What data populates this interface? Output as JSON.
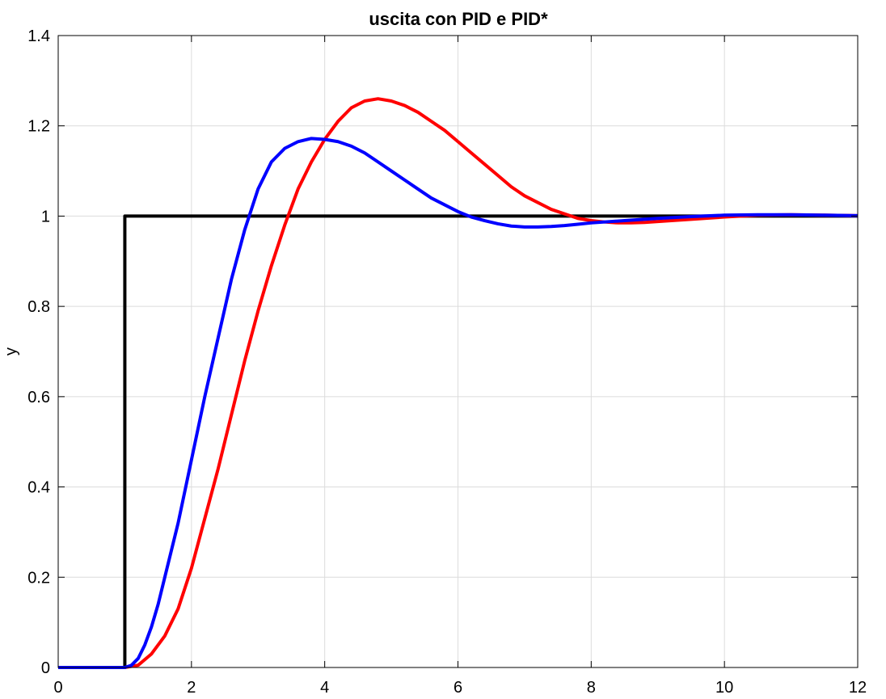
{
  "chart_data": {
    "type": "line",
    "title": "uscita con PID e PID*",
    "xlabel": "",
    "ylabel": "y",
    "xlim": [
      0,
      12
    ],
    "ylim": [
      0,
      1.4
    ],
    "xticks": [
      0,
      2,
      4,
      6,
      8,
      10,
      12
    ],
    "yticks": [
      0,
      0.2,
      0.4,
      0.6,
      0.8,
      1,
      1.2,
      1.4
    ],
    "xtick_labels": [
      "0",
      "2",
      "4",
      "6",
      "8",
      "10",
      "12"
    ],
    "ytick_labels": [
      "0",
      "0.2",
      "0.4",
      "0.6",
      "0.8",
      "1",
      "1.2",
      "1.4"
    ],
    "grid": true,
    "series": [
      {
        "color": "#000000",
        "x": [
          0,
          1,
          1,
          12
        ],
        "y": [
          0,
          0,
          1,
          1
        ]
      },
      {
        "color": "#ff0000",
        "x": [
          0,
          1.0,
          1.2,
          1.4,
          1.6,
          1.8,
          2.0,
          2.2,
          2.4,
          2.6,
          2.8,
          3.0,
          3.2,
          3.4,
          3.6,
          3.8,
          4.0,
          4.2,
          4.4,
          4.6,
          4.8,
          5.0,
          5.2,
          5.4,
          5.6,
          5.8,
          6.0,
          6.2,
          6.4,
          6.6,
          6.8,
          7.0,
          7.2,
          7.4,
          7.6,
          7.8,
          8.0,
          8.2,
          8.4,
          8.6,
          8.8,
          9.0,
          9.5,
          10.0,
          10.5,
          11.0,
          11.5,
          12.0
        ],
        "y": [
          0,
          0,
          0.005,
          0.03,
          0.07,
          0.13,
          0.22,
          0.33,
          0.44,
          0.56,
          0.68,
          0.79,
          0.89,
          0.98,
          1.06,
          1.12,
          1.17,
          1.21,
          1.24,
          1.255,
          1.26,
          1.255,
          1.245,
          1.23,
          1.21,
          1.19,
          1.165,
          1.14,
          1.115,
          1.09,
          1.065,
          1.045,
          1.03,
          1.015,
          1.005,
          0.995,
          0.99,
          0.987,
          0.985,
          0.985,
          0.986,
          0.988,
          0.993,
          0.998,
          1.002,
          1.003,
          1.002,
          1.001
        ]
      },
      {
        "color": "#0000ff",
        "x": [
          0,
          1.0,
          1.1,
          1.2,
          1.3,
          1.4,
          1.5,
          1.6,
          1.7,
          1.8,
          2.0,
          2.2,
          2.4,
          2.6,
          2.8,
          3.0,
          3.2,
          3.4,
          3.6,
          3.8,
          4.0,
          4.2,
          4.4,
          4.6,
          4.8,
          5.0,
          5.2,
          5.4,
          5.6,
          5.8,
          6.0,
          6.2,
          6.4,
          6.6,
          6.8,
          7.0,
          7.2,
          7.4,
          7.6,
          7.8,
          8.0,
          8.5,
          9.0,
          9.5,
          10.0,
          10.5,
          11.0,
          11.5,
          12.0
        ],
        "y": [
          0,
          0,
          0.005,
          0.02,
          0.05,
          0.09,
          0.14,
          0.2,
          0.26,
          0.32,
          0.46,
          0.6,
          0.73,
          0.86,
          0.97,
          1.06,
          1.12,
          1.15,
          1.165,
          1.172,
          1.17,
          1.165,
          1.155,
          1.14,
          1.12,
          1.1,
          1.08,
          1.06,
          1.04,
          1.025,
          1.01,
          0.998,
          0.99,
          0.983,
          0.978,
          0.976,
          0.976,
          0.977,
          0.979,
          0.982,
          0.985,
          0.99,
          0.995,
          0.999,
          1.002,
          1.003,
          1.003,
          1.002,
          1.001
        ]
      }
    ]
  }
}
